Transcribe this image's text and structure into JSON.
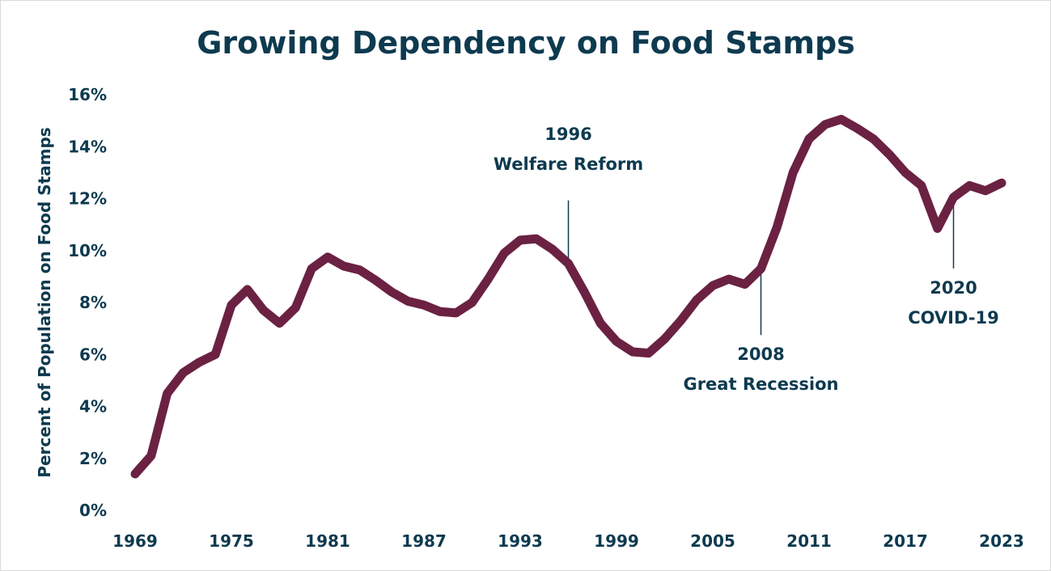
{
  "chart_data": {
    "type": "line",
    "title": "Growing Dependency on Food Stamps",
    "xlabel": "",
    "ylabel": "Percent of Population on Food Stamps",
    "ylim": [
      0,
      16
    ],
    "yticks": [
      "0%",
      "2%",
      "4%",
      "6%",
      "8%",
      "10%",
      "12%",
      "14%",
      "16%"
    ],
    "xticks": [
      "1969",
      "1975",
      "1981",
      "1987",
      "1993",
      "1999",
      "2005",
      "2011",
      "2017",
      "2023"
    ],
    "grid": false,
    "line_color": "#6b2142",
    "text_color": "#0e3a4f",
    "x": [
      1969,
      1970,
      1971,
      1972,
      1973,
      1974,
      1975,
      1976,
      1977,
      1978,
      1979,
      1980,
      1981,
      1982,
      1983,
      1984,
      1985,
      1986,
      1987,
      1988,
      1989,
      1990,
      1991,
      1992,
      1993,
      1994,
      1995,
      1996,
      1997,
      1998,
      1999,
      2000,
      2001,
      2002,
      2003,
      2004,
      2005,
      2006,
      2007,
      2008,
      2009,
      2010,
      2011,
      2012,
      2013,
      2014,
      2015,
      2016,
      2017,
      2018,
      2019,
      2020,
      2021,
      2022,
      2023
    ],
    "values": [
      1.4,
      2.1,
      4.5,
      5.3,
      5.7,
      6.0,
      7.9,
      8.5,
      7.7,
      7.2,
      7.8,
      9.3,
      9.75,
      9.4,
      9.25,
      8.85,
      8.4,
      8.05,
      7.9,
      7.65,
      7.6,
      8.0,
      8.9,
      9.9,
      10.4,
      10.45,
      10.05,
      9.5,
      8.4,
      7.2,
      6.5,
      6.1,
      6.05,
      6.6,
      7.3,
      8.1,
      8.65,
      8.9,
      8.7,
      9.3,
      10.9,
      13.0,
      14.3,
      14.85,
      15.05,
      14.7,
      14.3,
      13.7,
      13.0,
      12.5,
      10.85,
      12.05,
      12.5,
      12.3,
      12.6
    ],
    "annotations": [
      {
        "year": 1996,
        "line1": "1996",
        "line2": "Welfare Reform",
        "position": "above"
      },
      {
        "year": 2008,
        "line1": "2008",
        "line2": "Great Recession",
        "position": "below"
      },
      {
        "year": 2020,
        "line1": "2020",
        "line2": "COVID-19",
        "position": "below"
      }
    ]
  }
}
